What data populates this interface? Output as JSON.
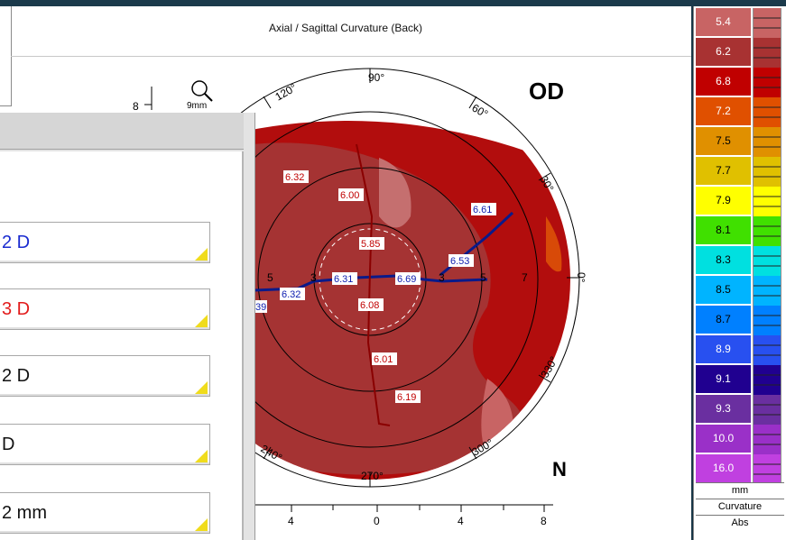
{
  "window": {
    "title": "Axial / Sagittal Curvature (Back)"
  },
  "map": {
    "eye": "OD",
    "nasal": "N",
    "zoom_label": "9mm",
    "scale_value": "8",
    "angle_labels": [
      "90°",
      "60°",
      "30°",
      "0°",
      "330°",
      "300°",
      "270°",
      "240°",
      "120°"
    ],
    "ring_labels": [
      "5",
      "3",
      "3",
      "5",
      "7"
    ],
    "readings": [
      "6.32",
      "6.00",
      "6.61",
      "5.85",
      "6.53",
      "6.31",
      "6.69",
      "6.32",
      "6.08",
      "6.01",
      "6.19",
      "39"
    ],
    "axis_ticks": [
      "4",
      "0",
      "4",
      "8"
    ]
  },
  "left_panel": {
    "fields": [
      {
        "text": "2 D",
        "color": "#1a2bd0"
      },
      {
        "text": "3 D",
        "color": "#e21b1b"
      },
      {
        "text": "2 D",
        "color": "#111111"
      },
      {
        "text": "D",
        "color": "#111111"
      },
      {
        "text": "2 mm",
        "color": "#111111"
      }
    ]
  },
  "legend": {
    "items": [
      {
        "value": "5.4",
        "color": "#c86464"
      },
      {
        "value": "6.2",
        "color": "#a83232"
      },
      {
        "value": "6.8",
        "color": "#c00000"
      },
      {
        "value": "7.2",
        "color": "#e05000"
      },
      {
        "value": "7.5",
        "color": "#e09000"
      },
      {
        "value": "7.7",
        "color": "#e0c000"
      },
      {
        "value": "7.9",
        "color": "#ffff00"
      },
      {
        "value": "8.1",
        "color": "#40e000"
      },
      {
        "value": "8.3",
        "color": "#00e0e0"
      },
      {
        "value": "8.5",
        "color": "#00b4ff"
      },
      {
        "value": "8.7",
        "color": "#0080ff"
      },
      {
        "value": "8.9",
        "color": "#2850f0"
      },
      {
        "value": "9.1",
        "color": "#200090"
      },
      {
        "value": "9.3",
        "color": "#6a2fa0"
      },
      {
        "value": "10.0",
        "color": "#9a30c8"
      },
      {
        "value": "16.0",
        "color": "#c040e0"
      }
    ],
    "unit": "mm",
    "mode": "Curvature",
    "scale": "Abs"
  }
}
